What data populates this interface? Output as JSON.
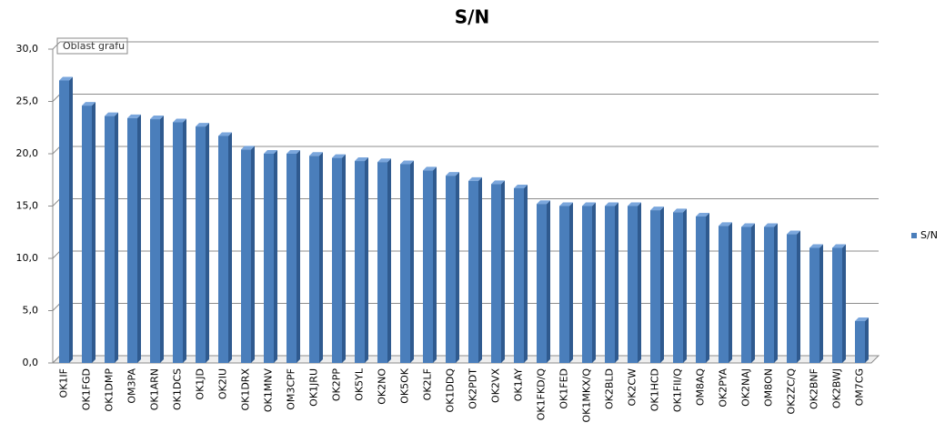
{
  "chart_data": {
    "type": "bar",
    "title": "S/N",
    "tooltip": "Oblast grafu",
    "categories": [
      "OK1IF",
      "OK1FGD",
      "OK1DMP",
      "OM3PA",
      "OK1ARN",
      "OK1DCS",
      "OK1JD",
      "OK2IU",
      "OK1DRX",
      "OK1MNV",
      "OM3CPF",
      "OK1JRU",
      "OK2PP",
      "OK5YL",
      "OK2NO",
      "OK5OK",
      "OK2LF",
      "OK1DDQ",
      "OK2PDT",
      "OK2VX",
      "OK1AY",
      "OK1FKD/Q",
      "OK1FED",
      "OK1MKX/Q",
      "OK2BLD",
      "OK2CW",
      "OK1HCD",
      "OK1FII/Q",
      "OM8AQ",
      "OK2PYA",
      "OK2NAJ",
      "OM8ON",
      "OK2ZC/Q",
      "OK2BNF",
      "OK2BWJ",
      "OM7CG"
    ],
    "series": [
      {
        "name": "S/N",
        "color": "#4a7ebb",
        "values": [
          27.0,
          24.6,
          23.6,
          23.4,
          23.3,
          23.0,
          22.6,
          21.7,
          20.4,
          20.0,
          20.0,
          19.8,
          19.6,
          19.3,
          19.2,
          19.0,
          18.4,
          17.9,
          17.4,
          17.1,
          16.7,
          15.2,
          15.0,
          15.0,
          15.0,
          15.0,
          14.6,
          14.4,
          14.0,
          13.1,
          13.0,
          13.0,
          12.3,
          11.0,
          11.0,
          4.0
        ]
      }
    ],
    "ylim": [
      0,
      30
    ],
    "yticks": [
      {
        "value": 0,
        "label": "0,0"
      },
      {
        "value": 5,
        "label": "5,0"
      },
      {
        "value": 10,
        "label": "10,0"
      },
      {
        "value": 15,
        "label": "15,0"
      },
      {
        "value": 20,
        "label": "20,0"
      },
      {
        "value": 25,
        "label": "25,0"
      },
      {
        "value": 30,
        "label": "30,0"
      }
    ],
    "grid": true,
    "legend": "right"
  }
}
